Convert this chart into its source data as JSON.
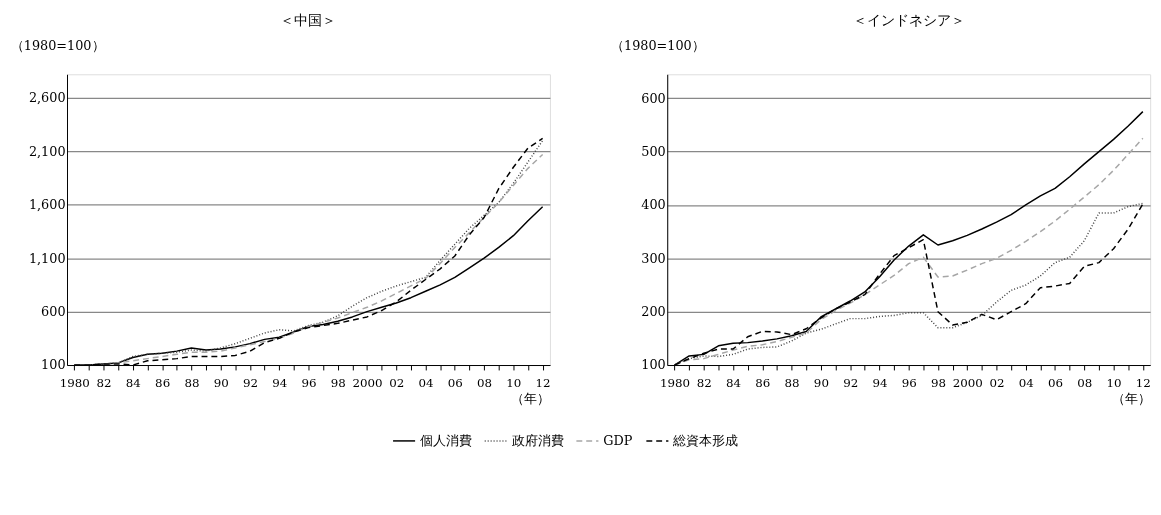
{
  "chart_data": [
    {
      "type": "line",
      "title": "＜中国＞",
      "ylabel": "（1980=100）",
      "xlabel": "（年）",
      "legend": "bottom",
      "grid": "y",
      "x": [
        1980,
        1981,
        1982,
        1983,
        1984,
        1985,
        1986,
        1987,
        1988,
        1989,
        1990,
        1991,
        1992,
        1993,
        1994,
        1995,
        1996,
        1997,
        1998,
        1999,
        2000,
        2001,
        2002,
        2003,
        2004,
        2005,
        2006,
        2007,
        2008,
        2009,
        2010,
        2011,
        2012
      ],
      "xlim": [
        1979.5,
        2012.5
      ],
      "xticks": [
        {
          "value": 1980,
          "label": "1980"
        },
        {
          "value": 1981,
          "label": null
        },
        {
          "value": 1982,
          "label": "82"
        },
        {
          "value": 1983,
          "label": null
        },
        {
          "value": 1984,
          "label": "84"
        },
        {
          "value": 1985,
          "label": null
        },
        {
          "value": 1986,
          "label": "86"
        },
        {
          "value": 1987,
          "label": null
        },
        {
          "value": 1988,
          "label": "88"
        },
        {
          "value": 1989,
          "label": null
        },
        {
          "value": 1990,
          "label": "90"
        },
        {
          "value": 1991,
          "label": null
        },
        {
          "value": 1992,
          "label": "92"
        },
        {
          "value": 1993,
          "label": null
        },
        {
          "value": 1994,
          "label": "94"
        },
        {
          "value": 1995,
          "label": null
        },
        {
          "value": 1996,
          "label": "96"
        },
        {
          "value": 1997,
          "label": null
        },
        {
          "value": 1998,
          "label": "98"
        },
        {
          "value": 1999,
          "label": null
        },
        {
          "value": 2000,
          "label": "2000"
        },
        {
          "value": 2001,
          "label": null
        },
        {
          "value": 2002,
          "label": "02"
        },
        {
          "value": 2003,
          "label": null
        },
        {
          "value": 2004,
          "label": "04"
        },
        {
          "value": 2005,
          "label": null
        },
        {
          "value": 2006,
          "label": "06"
        },
        {
          "value": 2007,
          "label": null
        },
        {
          "value": 2008,
          "label": "08"
        },
        {
          "value": 2009,
          "label": null
        },
        {
          "value": 2010,
          "label": "10"
        },
        {
          "value": 2011,
          "label": null
        },
        {
          "value": 2012,
          "label": "12"
        }
      ],
      "ylim": [
        100,
        2820
      ],
      "yticks": [
        {
          "value": 100,
          "label": "100"
        },
        {
          "value": 600,
          "label": "600"
        },
        {
          "value": 1100,
          "label": "1,100"
        },
        {
          "value": 1600,
          "label": "1,600"
        },
        {
          "value": 2100,
          "label": "2,100"
        },
        {
          "value": 2600,
          "label": "2,600"
        }
      ],
      "series": [
        {
          "name": "個人消費",
          "color": "#000000",
          "line_style": "solid",
          "values": [
            100,
            100,
            110,
            120,
            170,
            200,
            210,
            230,
            260,
            240,
            250,
            270,
            300,
            340,
            360,
            410,
            460,
            480,
            510,
            550,
            600,
            640,
            680,
            730,
            790,
            850,
            920,
            1010,
            1100,
            1200,
            1310,
            1450,
            1580
          ]
        },
        {
          "name": "政府消費",
          "color": "#404040",
          "line_style": "dotted",
          "values": [
            100,
            100,
            110,
            120,
            180,
            200,
            210,
            220,
            240,
            230,
            260,
            300,
            350,
            400,
            430,
            420,
            470,
            500,
            560,
            650,
            730,
            790,
            840,
            880,
            920,
            1080,
            1230,
            1380,
            1500,
            1620,
            1800,
            2000,
            2200
          ]
        },
        {
          "name": "GDP",
          "color": "#a6a6a6",
          "line_style": "dashed",
          "values": [
            100,
            100,
            110,
            120,
            140,
            160,
            180,
            200,
            220,
            220,
            230,
            260,
            290,
            320,
            350,
            400,
            460,
            500,
            540,
            590,
            640,
            700,
            770,
            840,
            910,
            1050,
            1200,
            1340,
            1480,
            1620,
            1780,
            1940,
            2070
          ]
        },
        {
          "name": "総資本形成",
          "color": "#000000",
          "line_style": "dashed",
          "values": [
            100,
            100,
            110,
            110,
            100,
            140,
            150,
            160,
            180,
            180,
            180,
            190,
            230,
            310,
            350,
            410,
            450,
            470,
            490,
            520,
            550,
            610,
            690,
            800,
            900,
            1000,
            1120,
            1320,
            1480,
            1750,
            1950,
            2130,
            2220
          ]
        }
      ]
    },
    {
      "type": "line",
      "title": "＜インドネシア＞",
      "ylabel": "（1980=100）",
      "xlabel": "（年）",
      "legend": "bottom",
      "grid": "y",
      "x": [
        1980,
        1981,
        1982,
        1983,
        1984,
        1985,
        1986,
        1987,
        1988,
        1989,
        1990,
        1991,
        1992,
        1993,
        1994,
        1995,
        1996,
        1997,
        1998,
        1999,
        2000,
        2001,
        2002,
        2003,
        2004,
        2005,
        2006,
        2007,
        2008,
        2009,
        2010,
        2011,
        2012
      ],
      "xlim": [
        1979.5,
        2012.5
      ],
      "xticks": [
        {
          "value": 1980,
          "label": "1980"
        },
        {
          "value": 1981,
          "label": null
        },
        {
          "value": 1982,
          "label": "82"
        },
        {
          "value": 1983,
          "label": null
        },
        {
          "value": 1984,
          "label": "84"
        },
        {
          "value": 1985,
          "label": null
        },
        {
          "value": 1986,
          "label": "86"
        },
        {
          "value": 1987,
          "label": null
        },
        {
          "value": 1988,
          "label": "88"
        },
        {
          "value": 1989,
          "label": null
        },
        {
          "value": 1990,
          "label": "90"
        },
        {
          "value": 1991,
          "label": null
        },
        {
          "value": 1992,
          "label": "92"
        },
        {
          "value": 1993,
          "label": null
        },
        {
          "value": 1994,
          "label": "94"
        },
        {
          "value": 1995,
          "label": null
        },
        {
          "value": 1996,
          "label": "96"
        },
        {
          "value": 1997,
          "label": null
        },
        {
          "value": 1998,
          "label": "98"
        },
        {
          "value": 1999,
          "label": null
        },
        {
          "value": 2000,
          "label": "2000"
        },
        {
          "value": 2001,
          "label": null
        },
        {
          "value": 2002,
          "label": "02"
        },
        {
          "value": 2003,
          "label": null
        },
        {
          "value": 2004,
          "label": "04"
        },
        {
          "value": 2005,
          "label": null
        },
        {
          "value": 2006,
          "label": "06"
        },
        {
          "value": 2007,
          "label": null
        },
        {
          "value": 2008,
          "label": "08"
        },
        {
          "value": 2009,
          "label": null
        },
        {
          "value": 2010,
          "label": "10"
        },
        {
          "value": 2011,
          "label": null
        },
        {
          "value": 2012,
          "label": "12"
        }
      ],
      "ylim": [
        100,
        645
      ],
      "yticks": [
        100,
        200,
        300,
        400,
        500,
        600
      ],
      "series": [
        {
          "name": "個人消費",
          "color": "#000000",
          "line_style": "solid",
          "values": [
            100,
            117,
            120,
            136,
            141,
            142,
            145,
            149,
            155,
            163,
            190,
            205,
            220,
            237,
            265,
            297,
            323,
            344,
            325,
            333,
            343,
            355,
            368,
            382,
            400,
            417,
            431,
            453,
            477,
            500,
            523,
            548,
            575
          ]
        },
        {
          "name": "政府消費",
          "color": "#404040",
          "line_style": "dotted",
          "values": [
            100,
            112,
            117,
            116,
            120,
            130,
            133,
            134,
            145,
            160,
            167,
            177,
            187,
            187,
            191,
            193,
            198,
            198,
            170,
            170,
            180,
            193,
            218,
            240,
            250,
            267,
            292,
            302,
            333,
            385,
            385,
            397,
            403
          ]
        },
        {
          "name": "GDP",
          "color": "#a6a6a6",
          "line_style": "dashed",
          "values": [
            100,
            110,
            112,
            120,
            128,
            135,
            138,
            144,
            152,
            160,
            185,
            202,
            216,
            232,
            250,
            268,
            290,
            302,
            265,
            267,
            278,
            290,
            300,
            315,
            332,
            350,
            370,
            392,
            415,
            438,
            465,
            495,
            525
          ]
        },
        {
          "name": "総資本形成",
          "color": "#000000",
          "line_style": "dashed",
          "values": [
            100,
            112,
            122,
            130,
            130,
            153,
            163,
            162,
            157,
            168,
            188,
            205,
            218,
            232,
            270,
            305,
            320,
            335,
            200,
            175,
            180,
            195,
            185,
            200,
            215,
            245,
            248,
            253,
            285,
            292,
            318,
            355,
            402
          ]
        }
      ]
    }
  ]
}
